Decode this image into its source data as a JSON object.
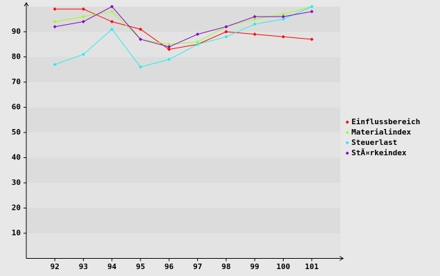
{
  "chart_data": {
    "type": "line",
    "categories": [
      "92",
      "93",
      "94",
      "95",
      "96",
      "97",
      "98",
      "99",
      "100",
      "101"
    ],
    "series": [
      {
        "name": "Einflussbereich",
        "color": "#ff0000",
        "values": [
          99,
          99,
          94,
          91,
          83,
          85,
          90,
          89,
          88,
          87
        ]
      },
      {
        "name": "Materialindex",
        "color": "#99ff22",
        "values": [
          94,
          96,
          98,
          87,
          85,
          86,
          92,
          95,
          97,
          100
        ]
      },
      {
        "name": "Steuerlast",
        "color": "#22eeee",
        "values": [
          77,
          81,
          91,
          76,
          79,
          85,
          88,
          93,
          95,
          100
        ]
      },
      {
        "name": "StÃ¤rkeindex",
        "color": "#8800cc",
        "values": [
          92,
          94,
          100,
          87,
          84,
          89,
          92,
          96,
          96,
          98
        ]
      }
    ],
    "ylim": [
      0,
      100
    ],
    "yticks": [
      10,
      20,
      30,
      40,
      50,
      60,
      70,
      80,
      90
    ],
    "grid": true,
    "legend": "right"
  }
}
